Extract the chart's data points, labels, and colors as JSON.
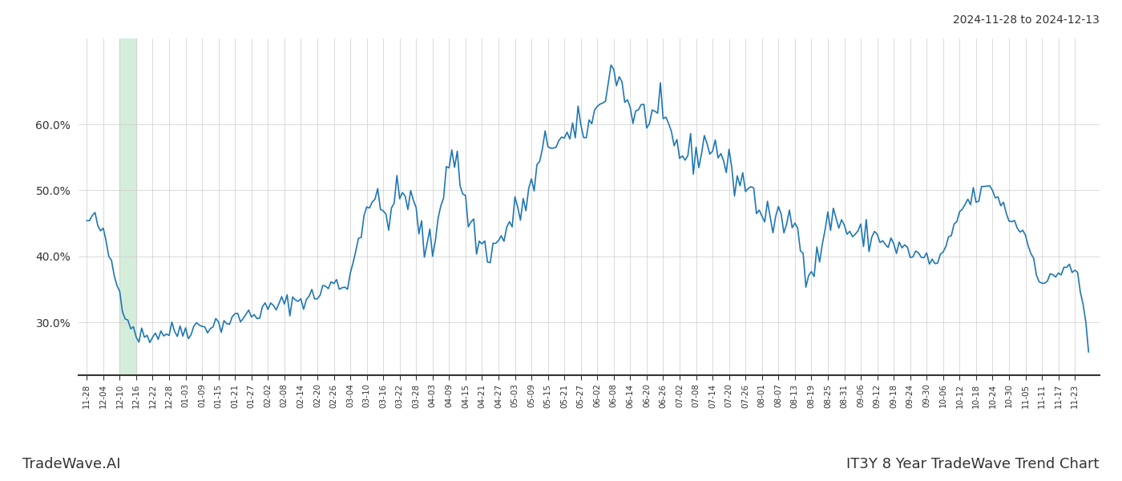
{
  "title_top_right": "2024-11-28 to 2024-12-13",
  "title_bottom_right": "IT3Y 8 Year TradeWave Trend Chart",
  "title_bottom_left": "TradeWave.AI",
  "background_color": "#ffffff",
  "line_color": "#1f77b4",
  "line_width": 1.2,
  "grid_color": "#cccccc",
  "shade_color": "#d4edda",
  "ylim": [
    0.22,
    0.73
  ],
  "yticks": [
    0.3,
    0.4,
    0.5,
    0.6
  ],
  "xlabels": [
    "11-28",
    "12-04",
    "12-10",
    "12-16",
    "12-22",
    "12-28",
    "01-03",
    "01-09",
    "01-15",
    "01-21",
    "01-27",
    "02-02",
    "02-08",
    "02-14",
    "02-20",
    "02-26",
    "03-04",
    "03-10",
    "03-16",
    "03-22",
    "03-28",
    "04-03",
    "04-09",
    "04-15",
    "04-21",
    "04-27",
    "05-03",
    "05-09",
    "05-15",
    "05-21",
    "05-27",
    "06-02",
    "06-08",
    "06-14",
    "06-20",
    "06-26",
    "07-02",
    "07-08",
    "07-14",
    "07-20",
    "07-26",
    "08-01",
    "08-07",
    "08-13",
    "08-19",
    "08-25",
    "08-31",
    "09-06",
    "09-12",
    "09-18",
    "09-24",
    "09-30",
    "10-06",
    "10-12",
    "10-18",
    "10-24",
    "10-30",
    "11-05",
    "11-11",
    "11-17",
    "11-23"
  ],
  "shade_start_label": "12-10",
  "shade_end_label": "12-16",
  "tick_interval": 6
}
